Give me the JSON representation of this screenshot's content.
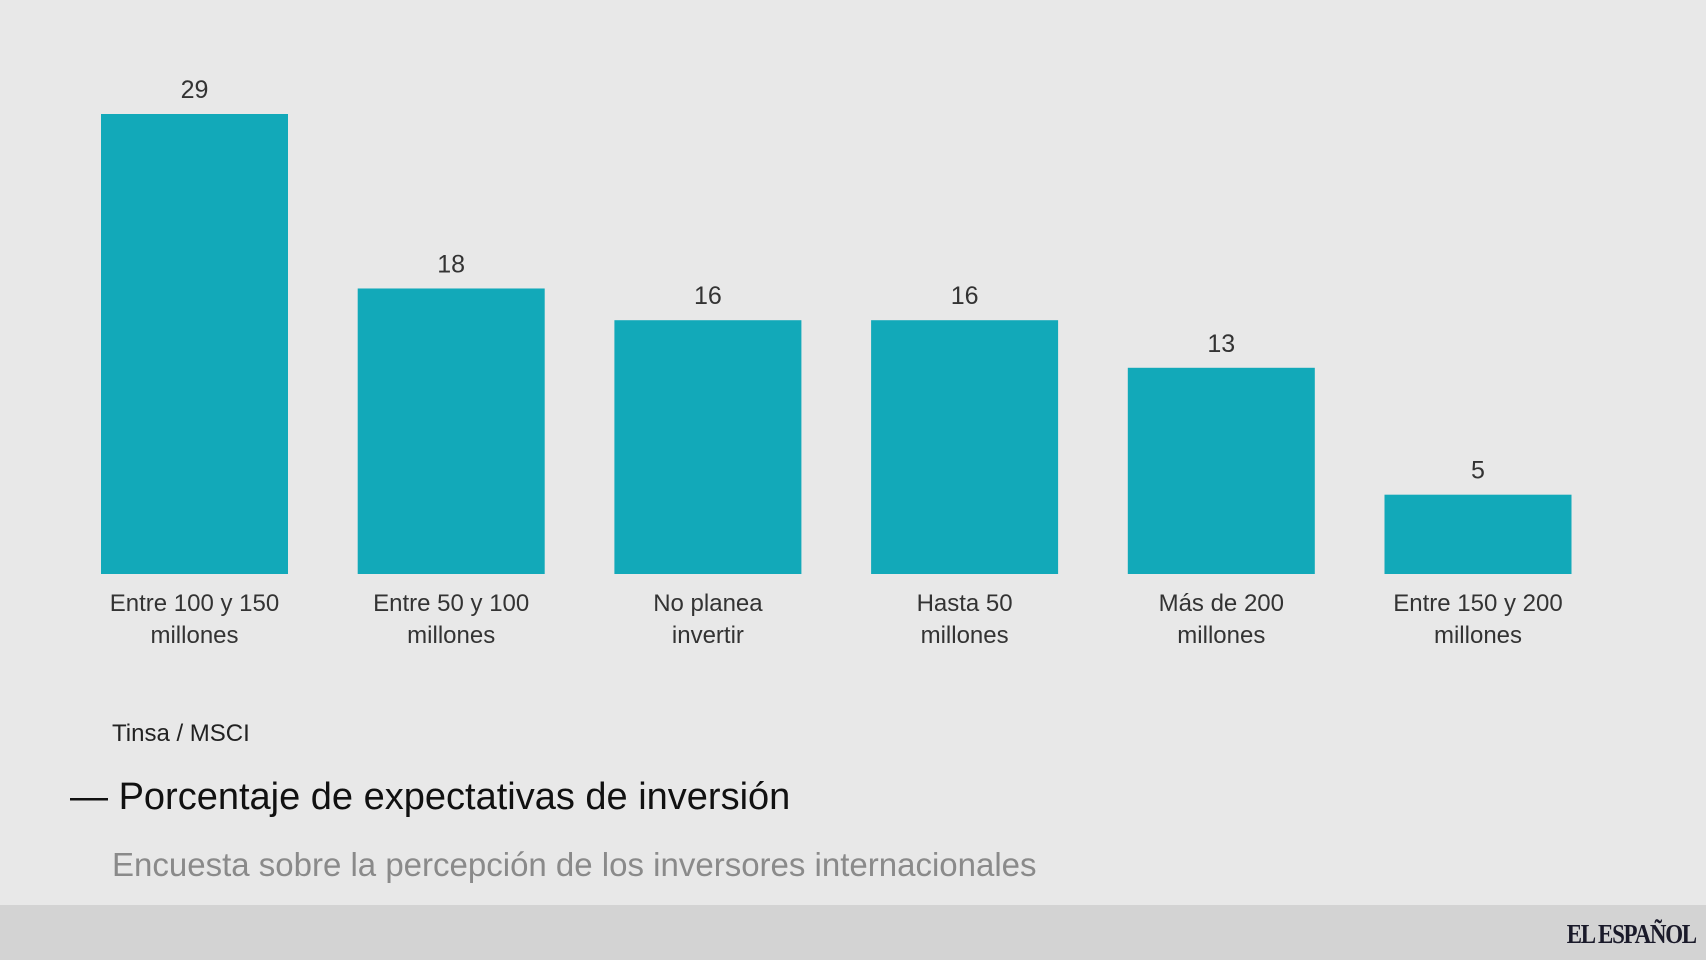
{
  "chart_data": {
    "type": "bar",
    "title": "Porcentaje de expectativas de inversión",
    "subtitle": "Encuesta sobre la percepción de los inversores internacionales",
    "source": "Tinsa / MSCI",
    "categories": [
      [
        "Entre 100 y 150",
        "millones"
      ],
      [
        "Entre 50 y 100",
        "millones"
      ],
      [
        "No planea",
        "invertir"
      ],
      [
        "Hasta 50",
        "millones"
      ],
      [
        "Más de 200",
        "millones"
      ],
      [
        "Entre 150 y 200",
        "millones"
      ]
    ],
    "values": [
      29,
      18,
      16,
      16,
      13,
      5
    ],
    "ylim": [
      0,
      29
    ],
    "grid": false,
    "color": "#12a9b9"
  },
  "footer": {
    "logo": "EL ESPAÑOL"
  }
}
